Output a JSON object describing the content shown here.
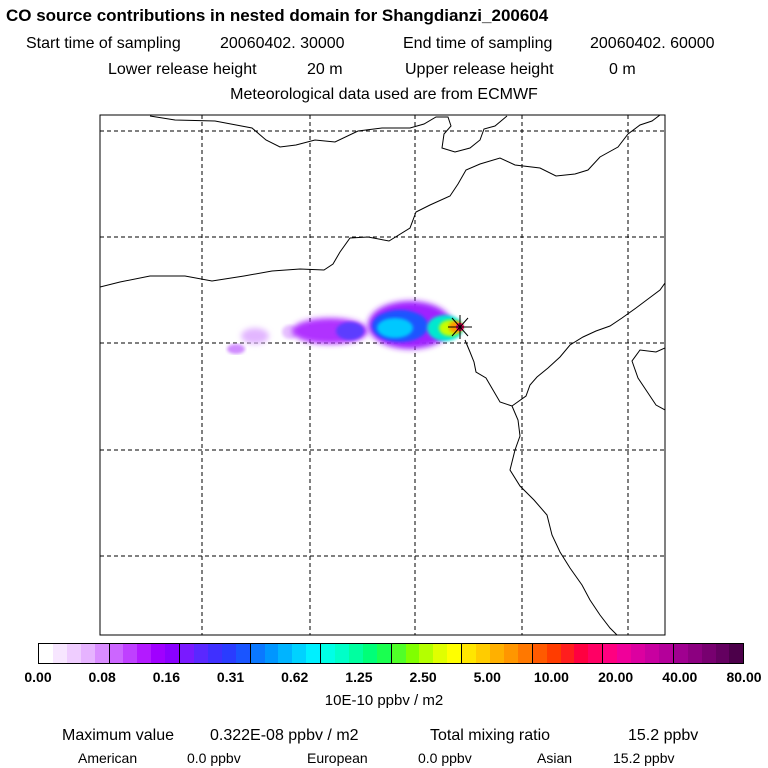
{
  "header": {
    "title": "CO  source contributions in nested domain for Shangdianzi_200604",
    "start_label": "Start time of sampling",
    "start_value": "20060402. 30000",
    "end_label": "End time of sampling",
    "end_value": "20060402. 60000",
    "lower_label": "Lower release height",
    "lower_value": "20 m",
    "upper_label": "Upper release height",
    "upper_value": "0 m",
    "met": "Meteorological data used are from ECMWF"
  },
  "colorbar": {
    "ticks": [
      "0.00",
      "0.08",
      "0.16",
      "0.31",
      "0.62",
      "1.25",
      "2.50",
      "5.00",
      "10.00",
      "20.00",
      "40.00",
      "80.00"
    ],
    "units": "10E-10 ppbv / m2",
    "colors": [
      "#ffffff",
      "#f7e6ff",
      "#efcdff",
      "#e6b3ff",
      "#d98cff",
      "#cc66ff",
      "#bf40ff",
      "#b31aff",
      "#a000ff",
      "#8a00ff",
      "#7a1aff",
      "#5a28ff",
      "#3f30ff",
      "#2a3cff",
      "#1a55ff",
      "#0a78ff",
      "#0096ff",
      "#00b4ff",
      "#00d2ff",
      "#00f0ff",
      "#00ffe6",
      "#00ffc8",
      "#00ffa0",
      "#00ff78",
      "#1aff50",
      "#50ff28",
      "#80ff00",
      "#b4ff00",
      "#e0ff00",
      "#ffff00",
      "#ffe600",
      "#ffcc00",
      "#ffb000",
      "#ff9600",
      "#ff7800",
      "#ff5a00",
      "#ff3c00",
      "#ff1e1e",
      "#ff0040",
      "#ff0064",
      "#ff0080",
      "#f0009a",
      "#dc00a0",
      "#c800a0",
      "#b4009a",
      "#a00090",
      "#8c0080",
      "#780070",
      "#640060",
      "#4c004a"
    ]
  },
  "summary": {
    "max_label": "Maximum value",
    "max_value": "0.322E-08 ppbv / m2",
    "total_label": "Total mixing ratio",
    "total_value": "15.2 ppbv",
    "regions": [
      {
        "name": "American",
        "value": "0.0 ppbv"
      },
      {
        "name": "European",
        "value": "0.0 ppbv"
      },
      {
        "name": "Asian",
        "value": "15.2 ppbv"
      }
    ]
  }
}
